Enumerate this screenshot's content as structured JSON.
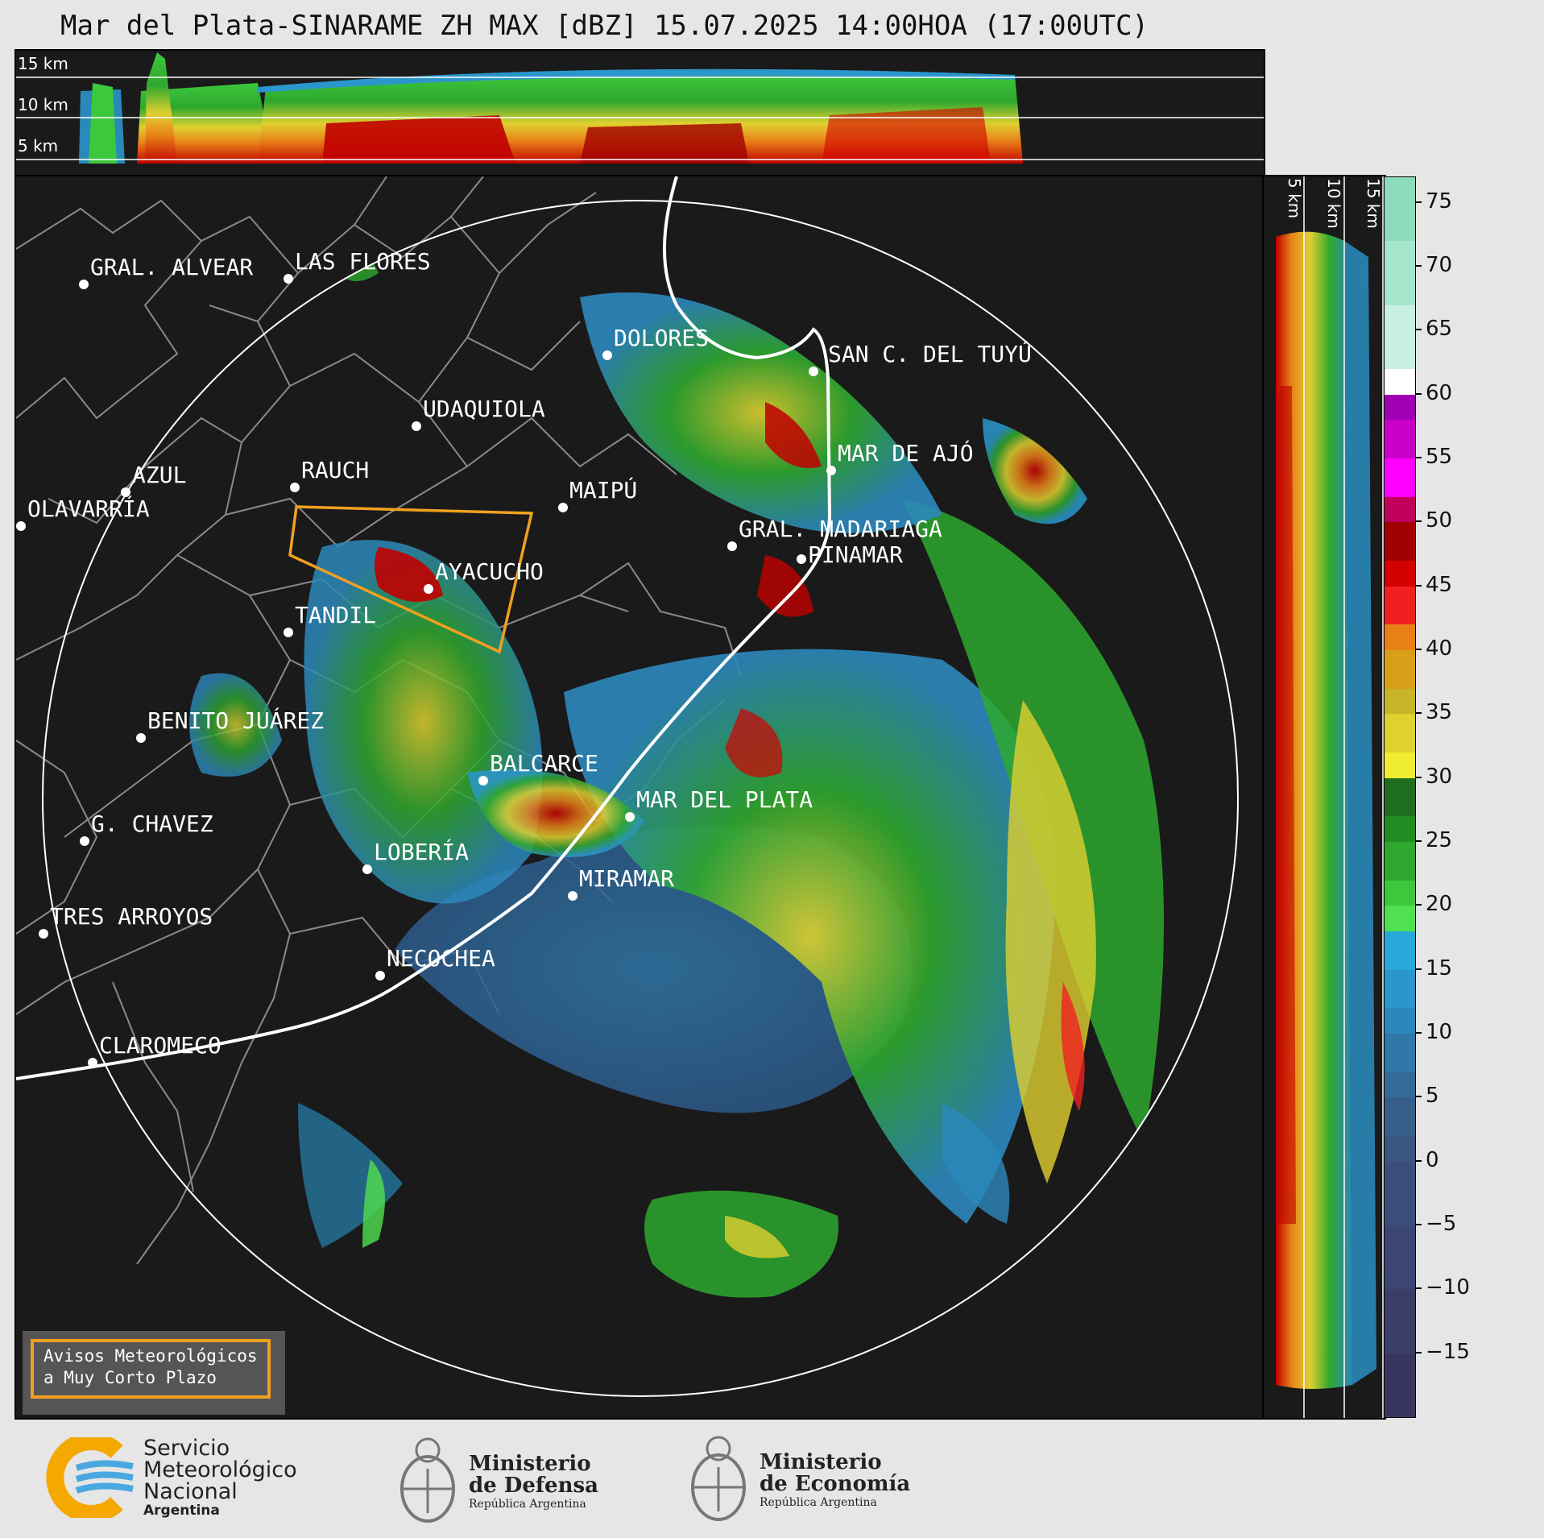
{
  "title": "Mar del Plata-SINARAME ZH MAX [dBZ] 15.07.2025 14:00HOA (17:00UTC)",
  "top_panel": {
    "labels": [
      "15 km",
      "10 km",
      "5 km"
    ]
  },
  "side_panel": {
    "labels": [
      "5 km",
      "10 km",
      "15 km"
    ]
  },
  "colorbar": {
    "ticks": [
      "75",
      "70",
      "65",
      "60",
      "55",
      "50",
      "45",
      "40",
      "35",
      "30",
      "25",
      "20",
      "15",
      "10",
      "5",
      "0",
      "−5",
      "−10",
      "−15"
    ],
    "bands": [
      {
        "from": 72,
        "to": 77,
        "color": "#8edcbc"
      },
      {
        "from": 67,
        "to": 72,
        "color": "#a6e6cc"
      },
      {
        "from": 62,
        "to": 67,
        "color": "#c8f0e0"
      },
      {
        "from": 60,
        "to": 62,
        "color": "#ffffff"
      },
      {
        "from": 58,
        "to": 60,
        "color": "#a000b4"
      },
      {
        "from": 55,
        "to": 58,
        "color": "#c800c8"
      },
      {
        "from": 52,
        "to": 55,
        "color": "#ff00ff"
      },
      {
        "from": 50,
        "to": 52,
        "color": "#c0005a"
      },
      {
        "from": 47,
        "to": 50,
        "color": "#a00000"
      },
      {
        "from": 45,
        "to": 47,
        "color": "#d40000"
      },
      {
        "from": 42,
        "to": 45,
        "color": "#f02020"
      },
      {
        "from": 40,
        "to": 42,
        "color": "#e88018"
      },
      {
        "from": 37,
        "to": 40,
        "color": "#d8a018"
      },
      {
        "from": 35,
        "to": 37,
        "color": "#c8b428"
      },
      {
        "from": 32,
        "to": 35,
        "color": "#e0d030"
      },
      {
        "from": 30,
        "to": 32,
        "color": "#f0ec30"
      },
      {
        "from": 27,
        "to": 30,
        "color": "#1e6e1e"
      },
      {
        "from": 25,
        "to": 27,
        "color": "#228b22"
      },
      {
        "from": 22,
        "to": 25,
        "color": "#2ea82e"
      },
      {
        "from": 20,
        "to": 22,
        "color": "#3cc83c"
      },
      {
        "from": 18,
        "to": 20,
        "color": "#50e050"
      },
      {
        "from": 15,
        "to": 18,
        "color": "#28a8d8"
      },
      {
        "from": 12,
        "to": 15,
        "color": "#2a96cc"
      },
      {
        "from": 10,
        "to": 12,
        "color": "#2c88bc"
      },
      {
        "from": 7,
        "to": 10,
        "color": "#3078a8"
      },
      {
        "from": 5,
        "to": 7,
        "color": "#346a98"
      },
      {
        "from": 2,
        "to": 5,
        "color": "#385e8a"
      },
      {
        "from": 0,
        "to": 2,
        "color": "#3a5682"
      },
      {
        "from": -5,
        "to": 0,
        "color": "#3c4e7a"
      },
      {
        "from": -10,
        "to": -5,
        "color": "#3c4672"
      },
      {
        "from": -15,
        "to": -10,
        "color": "#3a3e68"
      },
      {
        "from": -20,
        "to": -15,
        "color": "#383660"
      }
    ]
  },
  "cities": [
    {
      "name": "GRAL. ALVEAR"
    },
    {
      "name": "LAS FLORES"
    },
    {
      "name": "DOLORES"
    },
    {
      "name": "SAN C. DEL TUYÚ"
    },
    {
      "name": "UDAQUIOLA"
    },
    {
      "name": "MAR DE AJÓ"
    },
    {
      "name": "AZUL"
    },
    {
      "name": "RAUCH"
    },
    {
      "name": "MAIPÚ"
    },
    {
      "name": "OLAVARRÍA"
    },
    {
      "name": "GRAL. MADARIAGA"
    },
    {
      "name": "PINAMAR"
    },
    {
      "name": "AYACUCHO"
    },
    {
      "name": "TANDIL"
    },
    {
      "name": "BENITO JUÁREZ"
    },
    {
      "name": "BALCARCE"
    },
    {
      "name": "MAR DEL PLATA"
    },
    {
      "name": "G. CHAVEZ"
    },
    {
      "name": "LOBERÍA"
    },
    {
      "name": "MIRAMAR"
    },
    {
      "name": "TRES ARROYOS"
    },
    {
      "name": "NECOCHEA"
    },
    {
      "name": "CLAROMECO"
    }
  ],
  "aviso": {
    "line1": "Avisos Meteorológicos",
    "line2": "a Muy Corto Plazo"
  },
  "footer": {
    "smn_line1": "Servicio",
    "smn_line2": "Meteorológico",
    "smn_line3": "Nacional",
    "smn_line4": "Argentina",
    "def_line1": "Ministerio",
    "def_line2": "de Defensa",
    "def_line3": "República Argentina",
    "eco_line1": "Ministerio",
    "eco_line2": "de Economía",
    "eco_line3": "República Argentina"
  }
}
